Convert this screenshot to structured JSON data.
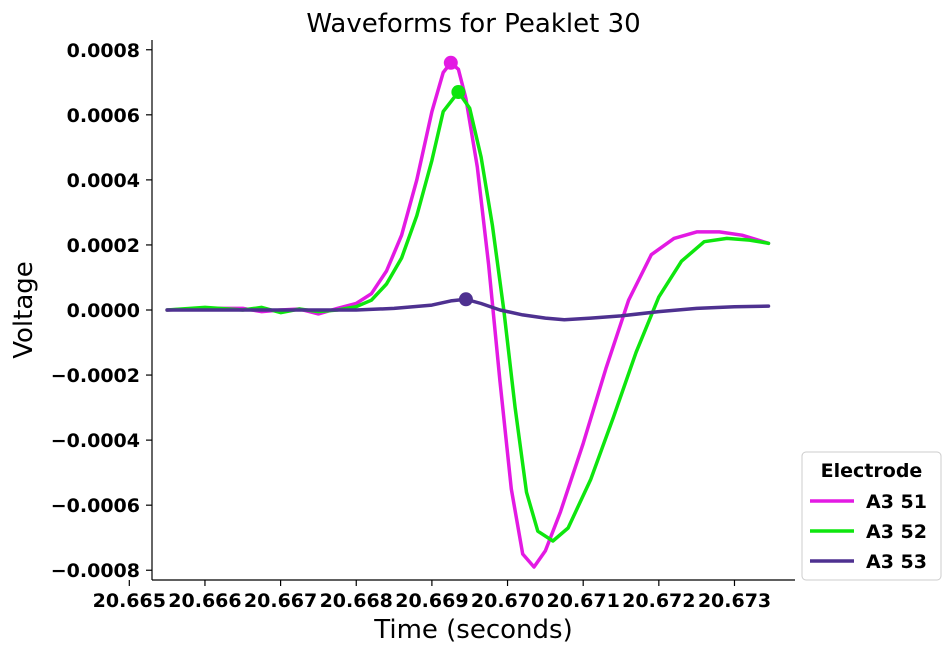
{
  "chart_data": {
    "type": "line",
    "title": "Waveforms for Peaklet 30",
    "xlabel": "Time (seconds)",
    "ylabel": "Voltage",
    "xlim": [
      20.6653,
      20.6738
    ],
    "ylim": [
      -0.00083,
      0.00083
    ],
    "x_ticks": [
      20.665,
      20.666,
      20.667,
      20.668,
      20.669,
      20.67,
      20.671,
      20.672,
      20.673
    ],
    "x_tick_labels": [
      "20.665",
      "20.666",
      "20.667",
      "20.668",
      "20.669",
      "20.670",
      "20.671",
      "20.672",
      "20.673"
    ],
    "y_ticks": [
      0.0008,
      0.0006,
      0.0004,
      0.0002,
      0.0,
      -0.0002,
      -0.0004,
      -0.0006,
      -0.0008
    ],
    "y_tick_labels": [
      "0.0008",
      "0.0006",
      "0.0004",
      "0.0002",
      "0.0000",
      "−0.0002",
      "−0.0004",
      "−0.0006",
      "−0.0008"
    ],
    "grid": false,
    "legend": {
      "title": "Electrode",
      "placement": "outside-lower-right"
    },
    "series": [
      {
        "name": "A3 51",
        "color": "#e31ae3",
        "points": [
          [
            20.6655,
            0.0
          ],
          [
            20.666,
            5e-06
          ],
          [
            20.6665,
            5e-06
          ],
          [
            20.66675,
            -5e-06
          ],
          [
            20.667,
            0.0
          ],
          [
            20.66725,
            3e-06
          ],
          [
            20.6675,
            -1.2e-05
          ],
          [
            20.66775,
            5e-06
          ],
          [
            20.668,
            2e-05
          ],
          [
            20.6682,
            5e-05
          ],
          [
            20.6684,
            0.00012
          ],
          [
            20.6686,
            0.00023
          ],
          [
            20.6688,
            0.0004
          ],
          [
            20.669,
            0.00061
          ],
          [
            20.66915,
            0.00073
          ],
          [
            20.66925,
            0.00076
          ],
          [
            20.66935,
            0.00074
          ],
          [
            20.66945,
            0.00065
          ],
          [
            20.6696,
            0.00044
          ],
          [
            20.66975,
            0.00014
          ],
          [
            20.6699,
            -0.00022
          ],
          [
            20.67005,
            -0.00055
          ],
          [
            20.6702,
            -0.00075
          ],
          [
            20.67035,
            -0.00079
          ],
          [
            20.6705,
            -0.00074
          ],
          [
            20.6707,
            -0.00062
          ],
          [
            20.671,
            -0.00041
          ],
          [
            20.6713,
            -0.00018
          ],
          [
            20.6716,
            3e-05
          ],
          [
            20.6719,
            0.00017
          ],
          [
            20.6722,
            0.00022
          ],
          [
            20.6725,
            0.00024
          ],
          [
            20.6728,
            0.00024
          ],
          [
            20.6731,
            0.00023
          ],
          [
            20.67345,
            0.000205
          ]
        ]
      },
      {
        "name": "A3 52",
        "color": "#0ee60e",
        "points": [
          [
            20.6655,
            0.0
          ],
          [
            20.666,
            8e-06
          ],
          [
            20.6665,
            0.0
          ],
          [
            20.66675,
            8e-06
          ],
          [
            20.667,
            -8e-06
          ],
          [
            20.66725,
            3e-06
          ],
          [
            20.6675,
            -5e-06
          ],
          [
            20.66775,
            0.0
          ],
          [
            20.668,
            1e-05
          ],
          [
            20.6682,
            3e-05
          ],
          [
            20.6684,
            8e-05
          ],
          [
            20.6686,
            0.00016
          ],
          [
            20.6688,
            0.00029
          ],
          [
            20.669,
            0.00046
          ],
          [
            20.66915,
            0.00061
          ],
          [
            20.66935,
            0.00067
          ],
          [
            20.6695,
            0.00062
          ],
          [
            20.66965,
            0.00047
          ],
          [
            20.6698,
            0.00026
          ],
          [
            20.66995,
            -0.0
          ],
          [
            20.6701,
            -0.0003
          ],
          [
            20.67025,
            -0.00056
          ],
          [
            20.6704,
            -0.00068
          ],
          [
            20.6706,
            -0.00071
          ],
          [
            20.6708,
            -0.00067
          ],
          [
            20.6711,
            -0.00052
          ],
          [
            20.6714,
            -0.00033
          ],
          [
            20.6717,
            -0.00013
          ],
          [
            20.672,
            4e-05
          ],
          [
            20.6723,
            0.00015
          ],
          [
            20.6726,
            0.00021
          ],
          [
            20.6729,
            0.00022
          ],
          [
            20.6732,
            0.000215
          ],
          [
            20.67345,
            0.000205
          ]
        ]
      },
      {
        "name": "A3 53",
        "color": "#4e3190",
        "points": [
          [
            20.6655,
            0.0
          ],
          [
            20.666,
            0.0
          ],
          [
            20.6665,
            0.0
          ],
          [
            20.667,
            0.0
          ],
          [
            20.6675,
            0.0
          ],
          [
            20.668,
            0.0
          ],
          [
            20.6685,
            5e-06
          ],
          [
            20.669,
            1.5e-05
          ],
          [
            20.66925,
            2.8e-05
          ],
          [
            20.66945,
            3.3e-05
          ],
          [
            20.66965,
            2e-05
          ],
          [
            20.6699,
            0.0
          ],
          [
            20.6702,
            -1.5e-05
          ],
          [
            20.6705,
            -2.5e-05
          ],
          [
            20.67075,
            -3e-05
          ],
          [
            20.6711,
            -2.5e-05
          ],
          [
            20.6715,
            -1.8e-05
          ],
          [
            20.672,
            -5e-06
          ],
          [
            20.6725,
            5e-06
          ],
          [
            20.673,
            1e-05
          ],
          [
            20.67345,
            1.2e-05
          ]
        ]
      }
    ],
    "peak_markers": [
      {
        "series": "A3 51",
        "x": 20.66925,
        "y": 0.00076
      },
      {
        "series": "A3 52",
        "x": 20.66935,
        "y": 0.00067
      },
      {
        "series": "A3 53",
        "x": 20.66945,
        "y": 3.3e-05
      }
    ]
  }
}
